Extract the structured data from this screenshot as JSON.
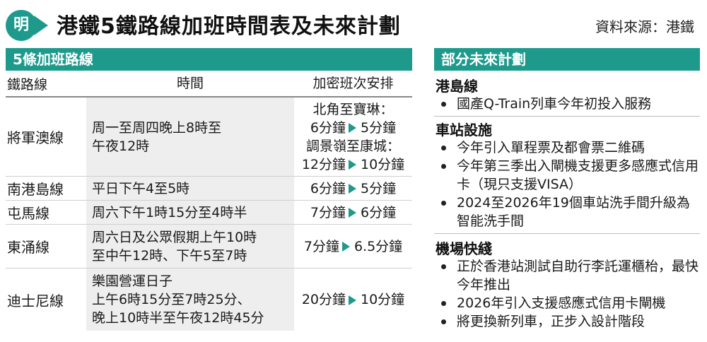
{
  "header": {
    "logo_char": "明",
    "title": "港鐵5鐵路線加班時間表及未來計劃",
    "source": "資料來源：港鐵"
  },
  "left_section": {
    "title": "5條加班路線",
    "columns": [
      "鐵路線",
      "時間",
      "加密班次安排"
    ],
    "rows": [
      {
        "line": "將軍澳線",
        "time": [
          "周一至周四晚上8時至",
          "午夜12時"
        ],
        "plan": [
          {
            "text": "北角至寶琳："
          },
          {
            "from": "6分鐘",
            "to": "5分鐘"
          },
          {
            "text": "調景嶺至康城："
          },
          {
            "from": "12分鐘",
            "to": "10分鐘"
          }
        ]
      },
      {
        "line": "南港島線",
        "time": [
          "平日下午4至5時"
        ],
        "plan": [
          {
            "from": "6分鐘",
            "to": "5分鐘"
          }
        ]
      },
      {
        "line": "屯馬線",
        "time": [
          "周六下午1時15分至4時半"
        ],
        "plan": [
          {
            "from": "7分鐘",
            "to": "6分鐘"
          }
        ]
      },
      {
        "line": "東涌線",
        "time": [
          "周六日及公眾假期上午10時",
          "至中午12時、下午5至7時"
        ],
        "plan": [
          {
            "from": "7分鐘",
            "to": "6.5分鐘"
          }
        ]
      },
      {
        "line": "迪士尼線",
        "time": [
          "樂園營運日子",
          "上午6時15分至7時25分、",
          "晚上10時半至午夜12時45分"
        ],
        "plan": [
          {
            "from": "20分鐘",
            "to": "10分鐘"
          }
        ]
      }
    ]
  },
  "right_section": {
    "title": "部分未來計劃",
    "groups": [
      {
        "heading": "港島線",
        "items": [
          "國產Q-Train列車今年初投入服務"
        ]
      },
      {
        "heading": "車站設施",
        "items": [
          "今年引入單程票及都會票二維碼",
          "今年第三季出入閘機支援更多感應式信用卡（現只支援VISA）",
          "2024至2026年19個車站洗手間升級為智能洗手間"
        ]
      },
      {
        "heading": "機場快綫",
        "items": [
          "正於香港站測試自助行李託運櫃枱，最快今年推出",
          "2026年引入支援感應式信用卡閘機",
          "將更換新列車，正步入設計階段"
        ]
      }
    ]
  },
  "colors": {
    "accent": "#1e9a8c",
    "time_bg": "#eeeeee"
  }
}
